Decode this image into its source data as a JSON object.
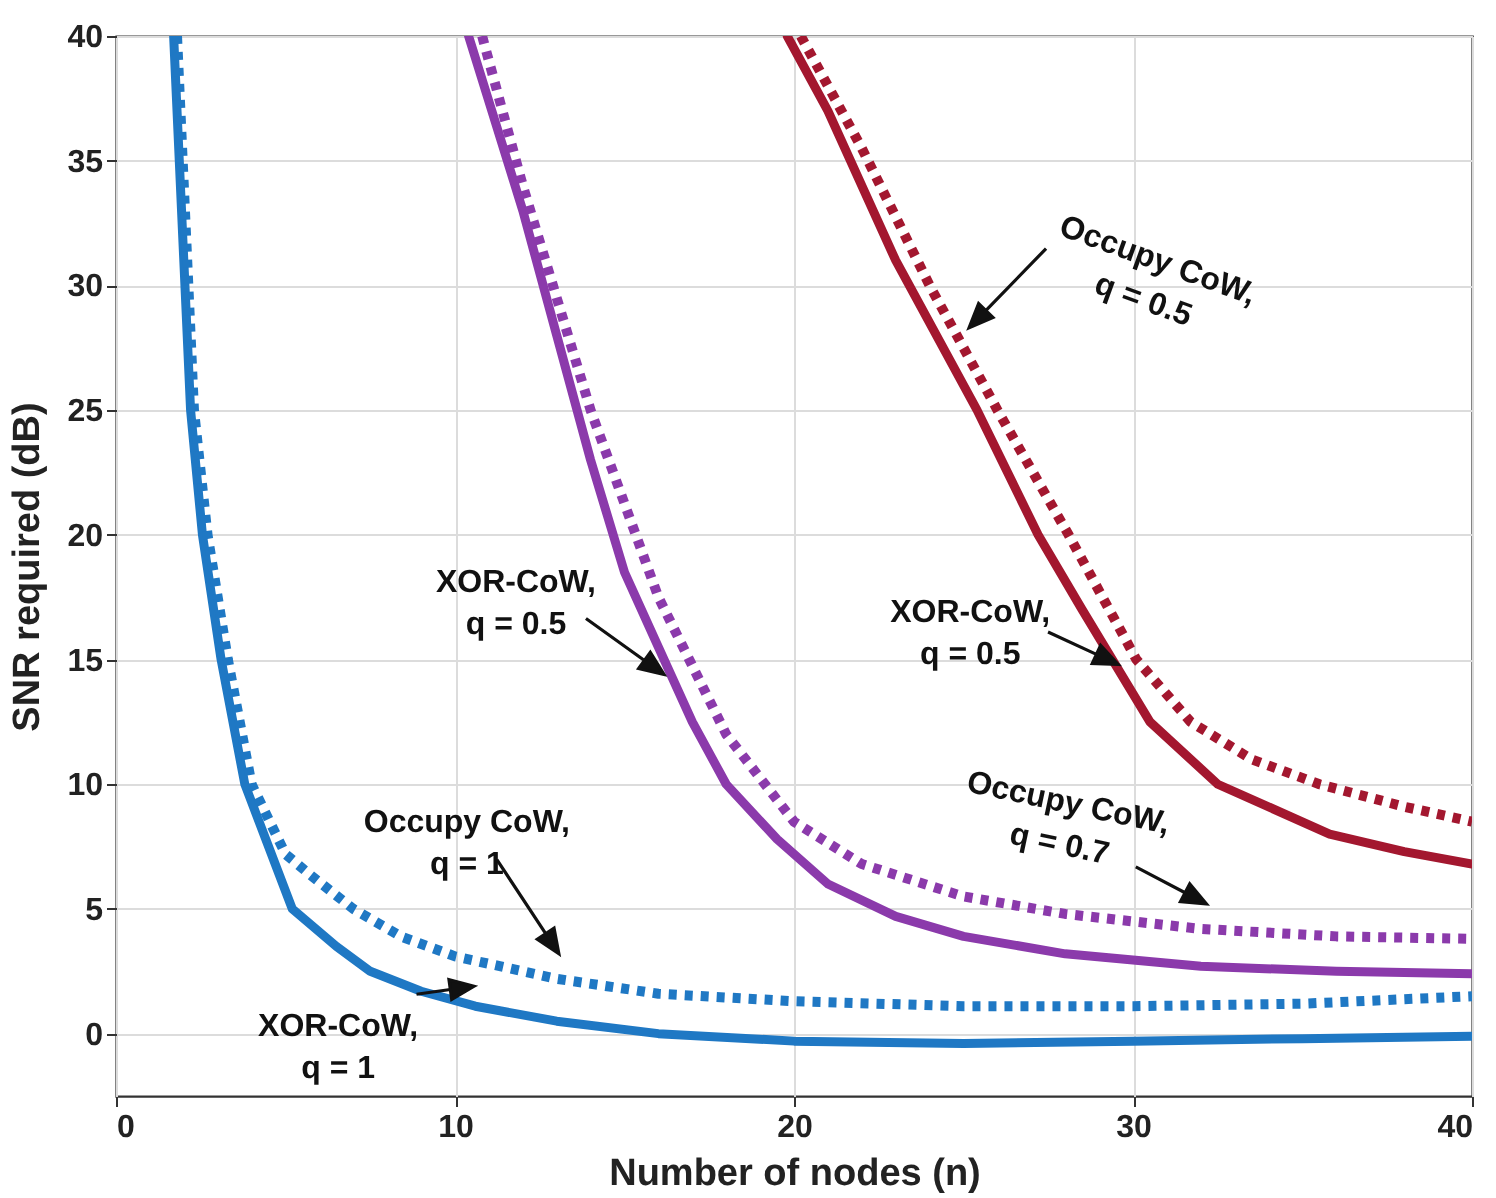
{
  "chart_data": {
    "type": "line",
    "xlabel": "Number of nodes (n)",
    "ylabel": "SNR required (dB)",
    "xlim": [
      0,
      40
    ],
    "xticks": [
      0,
      10,
      20,
      30,
      40
    ],
    "ylim": [
      -2.5,
      40
    ],
    "yticks": [
      0,
      5,
      10,
      15,
      20,
      25,
      30,
      35,
      40
    ],
    "grid": true,
    "series": [
      {
        "color": "#1f78c4",
        "line_style": "solid",
        "x": [
          1.7,
          2.2,
          2.55,
          3.1,
          3.8,
          5.2,
          6.5,
          7.5,
          9,
          10.6,
          13,
          16,
          20,
          25,
          30,
          35,
          40
        ],
        "values": [
          40,
          25,
          20,
          15,
          10,
          5,
          3.5,
          2.5,
          1.7,
          1.1,
          0.5,
          0,
          -0.3,
          -0.4,
          -0.3,
          -0.2,
          -0.1
        ]
      },
      {
        "color": "#1f78c4",
        "line_style": "dotted",
        "x": [
          1.8,
          2.3,
          2.7,
          3.3,
          4,
          5,
          5.7,
          7,
          8.4,
          10,
          13,
          16,
          20,
          25,
          30,
          35,
          40
        ],
        "values": [
          40,
          25,
          20,
          15,
          10,
          7.2,
          6.4,
          5,
          3.9,
          3.1,
          2.2,
          1.6,
          1.3,
          1.1,
          1.1,
          1.2,
          1.5
        ]
      },
      {
        "color": "#8b3aab",
        "line_style": "solid",
        "x": [
          10.4,
          12,
          13,
          14,
          15,
          16,
          17,
          18,
          19.5,
          21,
          23,
          25,
          28,
          32,
          36,
          40
        ],
        "values": [
          40,
          33,
          28,
          23,
          18.5,
          15.5,
          12.5,
          10,
          7.8,
          6,
          4.7,
          3.9,
          3.2,
          2.7,
          2.5,
          2.4
        ]
      },
      {
        "color": "#8b3aab",
        "line_style": "dotted",
        "x": [
          10.8,
          12,
          14,
          16,
          18,
          20,
          22,
          25,
          28,
          32,
          36,
          40
        ],
        "values": [
          40,
          34,
          25,
          17.5,
          12,
          8.5,
          6.8,
          5.5,
          4.8,
          4.2,
          3.9,
          3.8
        ]
      },
      {
        "color": "#a3172f",
        "line_style": "solid",
        "x": [
          19.8,
          21,
          23,
          25.4,
          27.2,
          28.5,
          30.5,
          32.5,
          35.8,
          38,
          40
        ],
        "values": [
          40,
          37,
          31,
          25,
          20,
          17,
          12.5,
          10,
          8,
          7.3,
          6.8
        ]
      },
      {
        "color": "#a3172f",
        "line_style": "dotted",
        "x": [
          20.2,
          22,
          24,
          26,
          28.1,
          30.1,
          31.7,
          33.5,
          35.5,
          38,
          40
        ],
        "values": [
          40,
          35.5,
          30,
          25,
          20,
          15,
          12.5,
          11,
          10,
          9.1,
          8.5
        ]
      }
    ],
    "annotations": [
      {
        "text": "Occupy CoW,\nq = 0.5",
        "x": 25.4,
        "y": 27.5
      },
      {
        "text": "XOR-CoW,\nq = 0.5",
        "x": 16.4,
        "y": 13.6
      },
      {
        "text": "XOR-CoW,\nq = 0.5",
        "x": 29.8,
        "y": 14
      },
      {
        "text": "Occupy CoW,\nq = 0.7",
        "x": 32.4,
        "y": 4.4
      },
      {
        "text": "Occupy CoW,\nq = 1",
        "x": 13.3,
        "y": 2.4
      },
      {
        "text": "XOR-CoW,\nq = 1",
        "x": 10.8,
        "y": 1.1
      }
    ]
  }
}
